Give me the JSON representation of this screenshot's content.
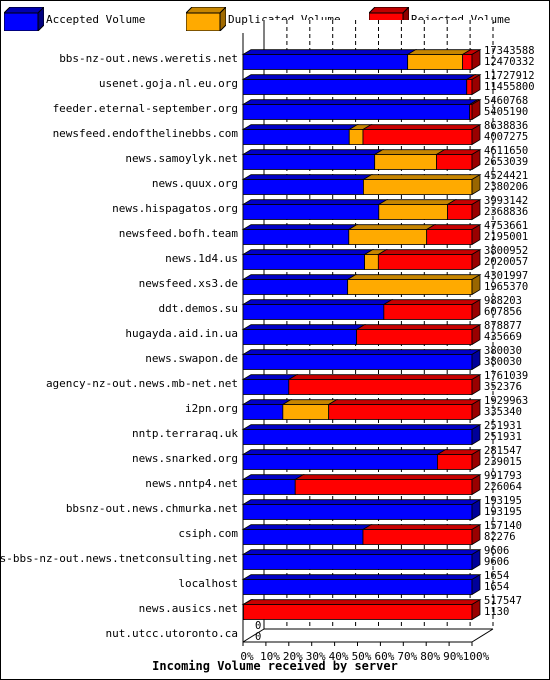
{
  "legend": {
    "accepted": "Accepted Volume",
    "duplicated": "Duplicated Volume",
    "rejected": "Rejected Volume"
  },
  "colors": {
    "accepted": "#0000ff",
    "duplicated": "#ffaa00",
    "rejected": "#ff0000"
  },
  "chart_data": {
    "type": "bar",
    "orientation": "horizontal",
    "stacked": true,
    "xlabel": "Incoming Volume received by server",
    "xticks": [
      "0%",
      "10%",
      "20%",
      "30%",
      "40%",
      "50%",
      "60%",
      "70%",
      "80%",
      "90%",
      "100%"
    ],
    "xlim": [
      0,
      100
    ],
    "grid": "vertical dashed",
    "legend_position": "top",
    "categories": [
      "bbs-nz-out.news.weretis.net",
      "usenet.goja.nl.eu.org",
      "feeder.eternal-september.org",
      "newsfeed.endofthelinebbs.com",
      "news.samoylyk.net",
      "news.quux.org",
      "news.hispagatos.org",
      "newsfeed.bofh.team",
      "news.1d4.us",
      "newsfeed.xs3.de",
      "ddt.demos.su",
      "hugayda.aid.in.ua",
      "news.swapon.de",
      "agency-nz-out.news.mb-net.net",
      "i2pn.org",
      "nntp.terraraq.uk",
      "news.snarked.org",
      "news.nntp4.net",
      "bbsnz-out.news.chmurka.net",
      "csiph.com",
      "news-bbs-nz-out.news.tnetconsulting.net",
      "localhost",
      "news.ausics.net",
      "nut.utcc.utoronto.ca"
    ],
    "total_volume": [
      17343588,
      11727912,
      5460768,
      8638836,
      4611650,
      4524421,
      3993142,
      4753661,
      3800952,
      4301997,
      988203,
      878877,
      380030,
      1761039,
      1929963,
      251931,
      281547,
      991793,
      193195,
      157140,
      9606,
      1654,
      517547,
      0
    ],
    "accepted_volume": [
      12470332,
      11455800,
      5405190,
      4007275,
      2653039,
      2380206,
      2368836,
      2195001,
      2020057,
      1965370,
      607856,
      435669,
      380030,
      352376,
      335340,
      251931,
      239015,
      226064,
      193195,
      82276,
      9606,
      1654,
      1130,
      0
    ],
    "series": [
      {
        "name": "Accepted Volume",
        "values": [
          71.9,
          97.7,
          99.0,
          46.4,
          57.5,
          52.6,
          59.3,
          46.2,
          53.1,
          45.7,
          61.5,
          49.6,
          100,
          20.0,
          17.4,
          100,
          84.9,
          22.8,
          100,
          52.4,
          100,
          100,
          0.2,
          0
        ]
      },
      {
        "name": "Duplicated Volume",
        "values": [
          24.0,
          0,
          0,
          6.0,
          27.0,
          47.4,
          30.0,
          34.0,
          6.0,
          54.3,
          0,
          0,
          0,
          0,
          20.0,
          0,
          0,
          0,
          0,
          0,
          0,
          0,
          0,
          0
        ]
      },
      {
        "name": "Rejected Volume",
        "values": [
          4.1,
          2.3,
          1.0,
          47.6,
          15.5,
          0,
          10.7,
          19.8,
          40.9,
          0,
          38.5,
          50.4,
          0,
          80.0,
          62.6,
          0,
          15.1,
          77.2,
          0,
          47.6,
          0,
          0,
          99.8,
          0
        ]
      }
    ]
  }
}
